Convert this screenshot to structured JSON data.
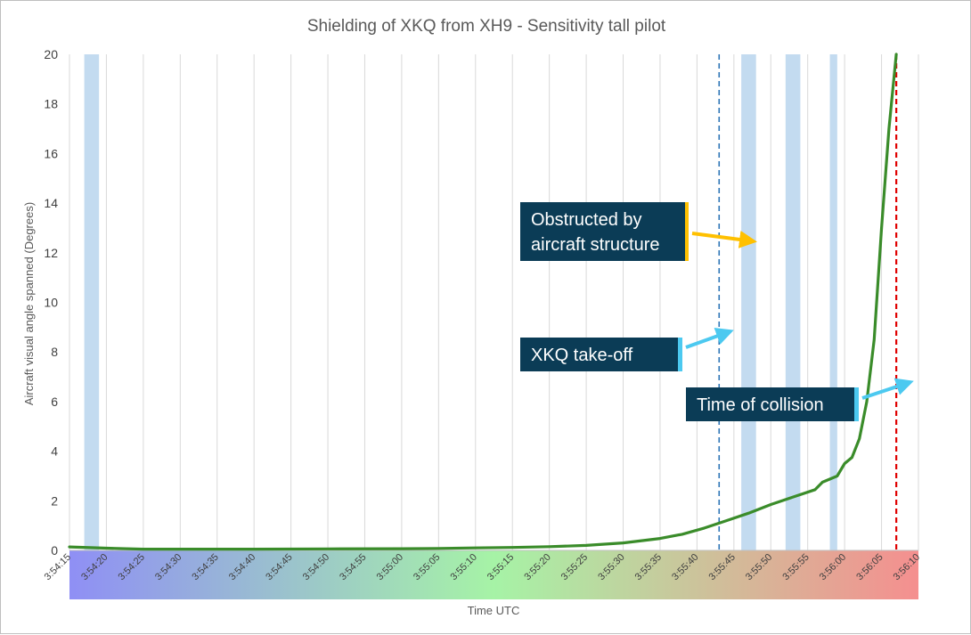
{
  "chart_data": {
    "type": "line",
    "title": "Shielding of XKQ from XH9 - Sensitivity tall pilot",
    "xlabel": "Time UTC",
    "ylabel": "Aircraft visual angle spanned (Degrees)",
    "x_range": [
      "3:54:15",
      "3:56:10"
    ],
    "ylim": [
      0,
      20
    ],
    "y_ticks": [
      0,
      2,
      4,
      6,
      8,
      10,
      12,
      14,
      16,
      18,
      20
    ],
    "x_tick_labels": [
      "3:54:15",
      "3:54:20",
      "3:54:25",
      "3:54:30",
      "3:54:35",
      "3:54:40",
      "3:54:45",
      "3:54:50",
      "3:54:55",
      "3:55:00",
      "3:55:05",
      "3:55:10",
      "3:55:15",
      "3:55:20",
      "3:55:25",
      "3:55:30",
      "3:55:35",
      "3:55:40",
      "3:55:45",
      "3:55:50",
      "3:55:55",
      "3:56:00",
      "3:56:05",
      "3:56:10"
    ],
    "grid": "vertical",
    "series": [
      {
        "color": "#3a8c2a",
        "points": [
          [
            "3:54:15",
            0.14
          ],
          [
            "3:54:20",
            0.09
          ],
          [
            "3:54:25",
            0.05
          ],
          [
            "3:54:30",
            0.05
          ],
          [
            "3:54:40",
            0.05
          ],
          [
            "3:54:50",
            0.06
          ],
          [
            "3:55:00",
            0.07
          ],
          [
            "3:55:05",
            0.08
          ],
          [
            "3:55:10",
            0.1
          ],
          [
            "3:55:15",
            0.12
          ],
          [
            "3:55:20",
            0.15
          ],
          [
            "3:55:25",
            0.2
          ],
          [
            "3:55:30",
            0.3
          ],
          [
            "3:55:35",
            0.48
          ],
          [
            "3:55:38",
            0.65
          ],
          [
            "3:55:41",
            0.9
          ],
          [
            "3:55:44",
            1.2
          ],
          [
            "3:55:47",
            1.5
          ],
          [
            "3:55:50",
            1.85
          ],
          [
            "3:55:53",
            2.15
          ],
          [
            "3:55:56",
            2.45
          ],
          [
            "3:55:57",
            2.75
          ],
          [
            "3:55:59",
            3.0
          ],
          [
            "3:56:00",
            3.5
          ],
          [
            "3:56:01",
            3.75
          ],
          [
            "3:56:02",
            4.5
          ],
          [
            "3:56:03",
            6.0
          ],
          [
            "3:56:04",
            8.5
          ],
          [
            "3:56:05",
            13.0
          ],
          [
            "3:56:06",
            17.0
          ],
          [
            "3:56:07",
            20.0
          ]
        ]
      }
    ],
    "obstructed_periods": [
      [
        "3:54:17",
        "3:54:19"
      ],
      [
        "3:55:46",
        "3:55:48"
      ],
      [
        "3:55:52",
        "3:55:54"
      ],
      [
        "3:55:58",
        "3:55:59"
      ]
    ],
    "obstruction_color": "#bdd7ee",
    "events": [
      {
        "label": "XKQ take-off",
        "time": "3:55:43",
        "color": "#2e75b6",
        "style": "dashed"
      },
      {
        "label": "Time of collision",
        "time": "3:56:07",
        "color": "#e00000",
        "style": "dashed"
      }
    ],
    "annotations": [
      {
        "text": "Obstructed by aircraft structure",
        "accent": "#ffc000"
      },
      {
        "text": "XKQ take-off",
        "accent": "#4cc9f0"
      },
      {
        "text": "Time of collision",
        "accent": "#4cc9f0"
      }
    ],
    "x_band_gradient": [
      "#8f8ff5",
      "#a6f3a6",
      "#f58f8f"
    ]
  }
}
